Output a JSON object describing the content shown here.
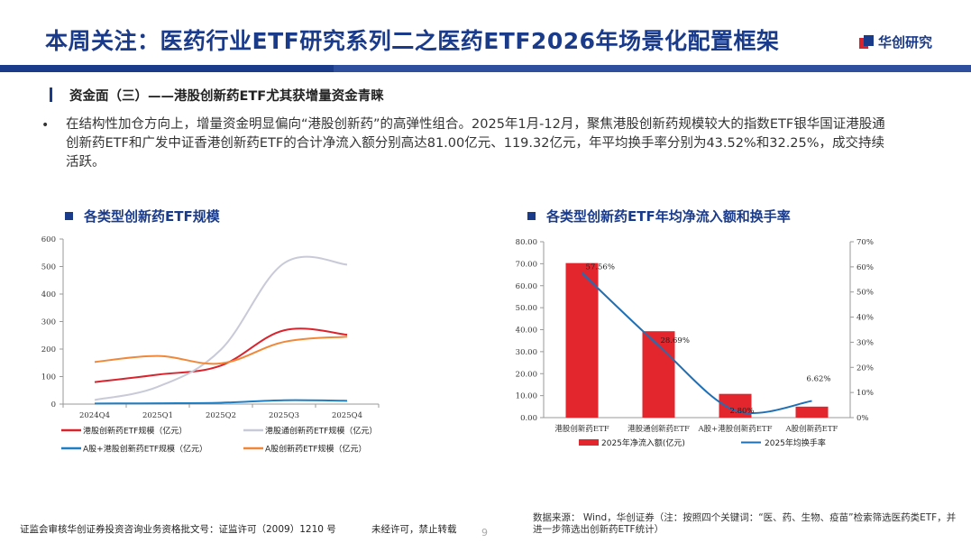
{
  "header": {
    "title": "本周关注：医药行业ETF研究系列二之医药ETF2026年场景化配置框架",
    "logo_text": "华创研究"
  },
  "section": {
    "title": "资金面（三）——港股创新药ETF尤其获增量资金青睐"
  },
  "bullet": {
    "dot": "•",
    "text": "在结构性加仓方向上，增量资金明显偏向“港股创新药”的高弹性组合。2025年1月-12月，聚焦港股创新药规模较大的指数ETF银华国证港股通创新药ETF和广发中证香港创新药ETF的合计净流入额分别高达81.00亿元、119.32亿元，年平均换手率分别为43.52%和32.25%，成交持续活跃。"
  },
  "chart_data": [
    {
      "type": "line",
      "title": "各类型创新药ETF规模",
      "categories": [
        "2024Q4",
        "2025Q1",
        "2025Q2",
        "2025Q3",
        "2025Q4"
      ],
      "yticks": [
        "0",
        "100",
        "200",
        "300",
        "400",
        "500",
        "600"
      ],
      "ylim": [
        0,
        600
      ],
      "series": [
        {
          "name": "港股创新药ETF规模（亿元）",
          "color": "#d9232d",
          "values": [
            80,
            107,
            140,
            268,
            252
          ]
        },
        {
          "name": "港股通创新药ETF规模（亿元）",
          "color": "#c8cad8",
          "values": [
            15,
            63,
            198,
            512,
            507
          ]
        },
        {
          "name": "A股+港股创新药ETF规模（亿元）",
          "color": "#1f7fc4",
          "values": [
            2,
            3,
            5,
            14,
            12
          ]
        },
        {
          "name": "A股创新药ETF规模（亿元）",
          "color": "#f0883a",
          "values": [
            153,
            175,
            148,
            226,
            245
          ]
        }
      ]
    },
    {
      "type": "bar",
      "title": "各类型创新药ETF年均净流入额和换手率",
      "categories": [
        "港股创新药ETF",
        "港股通创新药ETF",
        "A股+港股创新药ETF",
        "A股创新药ETF"
      ],
      "yticks_left": [
        "0.00",
        "10.00",
        "20.00",
        "30.00",
        "40.00",
        "50.00",
        "60.00",
        "70.00",
        "80.00"
      ],
      "yticks_right": [
        "0%",
        "10%",
        "20%",
        "30%",
        "40%",
        "50%",
        "60%",
        "70%"
      ],
      "ylim_left": [
        0,
        80
      ],
      "ylim_right": [
        0,
        70
      ],
      "series": [
        {
          "name": "2025年净流入额(亿元)",
          "kind": "bar",
          "color": "#e3262d",
          "values": [
            70.3,
            39.3,
            10.8,
            5.0
          ]
        },
        {
          "name": "2025年均换手率",
          "kind": "line",
          "color": "#1f6fb5",
          "values": [
            57.56,
            28.69,
            2.8,
            6.62
          ],
          "labels": [
            "57.56%",
            "28.69%",
            "2.80%",
            "6.62%"
          ]
        }
      ]
    }
  ],
  "footer": {
    "source": "数据来源： Wind，华创证券（注：按照四个关键词：“医、药、生物、疫苗”检索筛选医药类ETF，并进一步筛选出创新药ETF统计）",
    "license": "证监会审核华创证券投资咨询业务资格批文号：证监许可（2009）1210 号",
    "notice": "未经许可，禁止转载",
    "page": "9"
  }
}
